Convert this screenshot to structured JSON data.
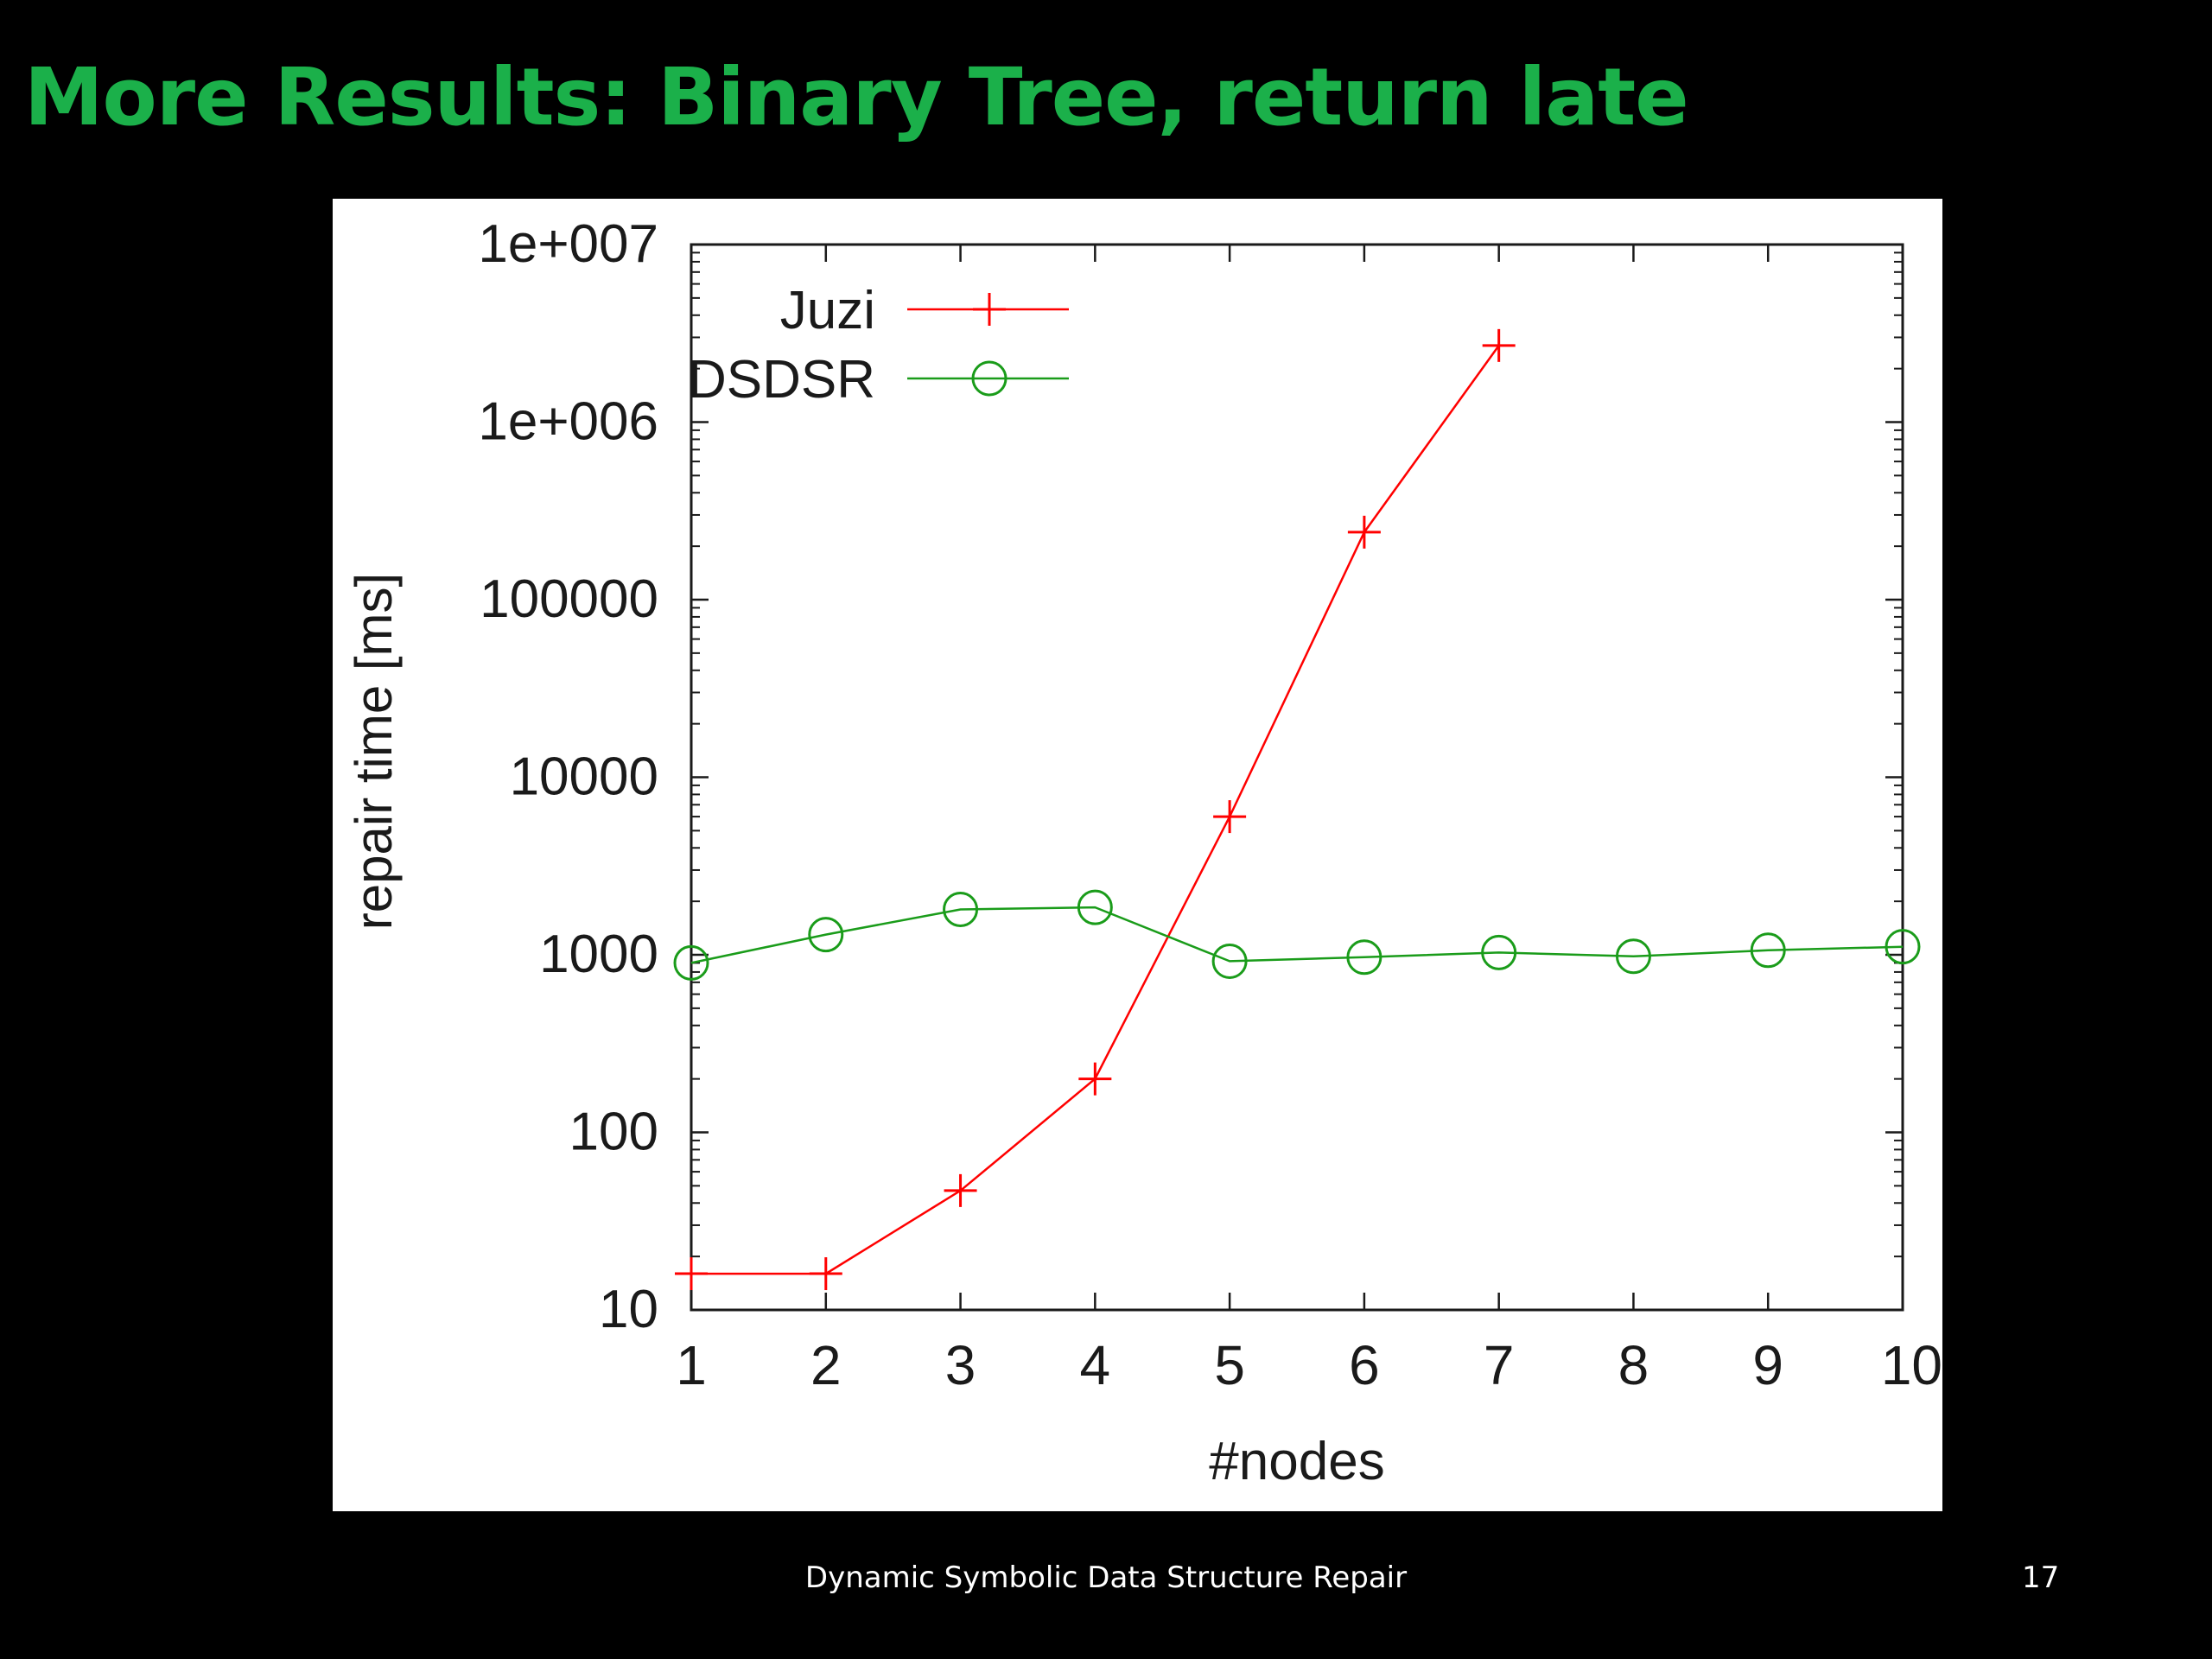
{
  "slide": {
    "title": "More Results: Binary Tree, return late",
    "footer": "Dynamic Symbolic Data Structure Repair",
    "page_number": "17",
    "title_color": "#1bb04a"
  },
  "chart_data": {
    "type": "line",
    "xlabel": "#nodes",
    "ylabel": "repair time [ms]",
    "x": [
      1,
      2,
      3,
      4,
      5,
      6,
      7,
      8,
      9,
      10
    ],
    "x_tick_labels": [
      "1",
      "2",
      "3",
      "4",
      "5",
      "6",
      "7",
      "8",
      "9",
      "10"
    ],
    "y_scale": "log",
    "ylim": [
      10,
      10000000
    ],
    "xlim": [
      1,
      10
    ],
    "y_tick_values": [
      10,
      100,
      1000,
      10000,
      100000,
      1000000,
      10000000
    ],
    "y_tick_labels": [
      "10",
      "100",
      "1000",
      "10000",
      "100000",
      "1e+006",
      "1e+007"
    ],
    "legend_position": "top-left",
    "grid": false,
    "series": [
      {
        "name": "Juzi",
        "color": "#ff0000",
        "marker": "plus",
        "x": [
          1,
          2,
          3,
          4,
          5,
          6,
          7
        ],
        "values": [
          16,
          16,
          47,
          200,
          6000,
          240000,
          2700000
        ]
      },
      {
        "name": "DSDSR",
        "color": "#1a9c1a",
        "marker": "circle",
        "x": [
          1,
          2,
          3,
          4,
          5,
          6,
          7,
          8,
          9,
          10
        ],
        "values": [
          900,
          1300,
          1800,
          1850,
          920,
          970,
          1030,
          980,
          1060,
          1110
        ]
      }
    ]
  }
}
